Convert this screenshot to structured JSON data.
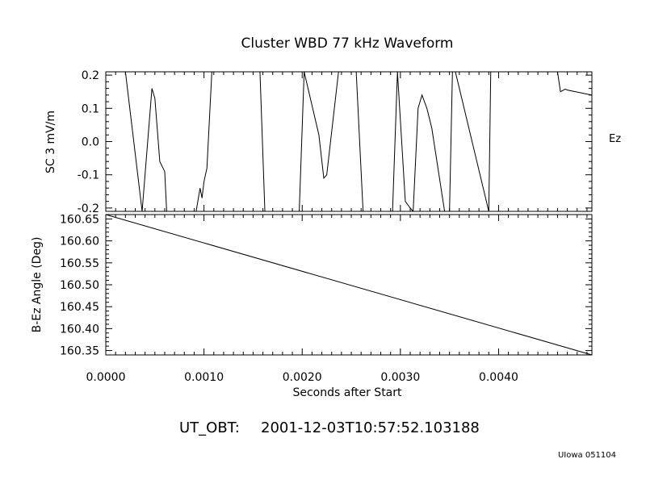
{
  "title": "Cluster WBD 77 kHz Waveform",
  "footer": {
    "time_label": "UT_OBT:",
    "time_value": "2001-12-03T10:57:52.103188",
    "credit": "UIowa 051104"
  },
  "chart_data": [
    {
      "type": "line",
      "ylabel": "SC 3 mV/m",
      "channel_label": "Ez",
      "xlim": [
        0.0,
        0.00495
      ],
      "ylim": [
        -0.21,
        0.21
      ],
      "yticks": [
        -0.2,
        -0.1,
        0.0,
        0.1,
        0.2
      ],
      "ytick_labels": [
        "-0.2",
        "-0.1",
        "0.0",
        "0.1",
        "0.2"
      ],
      "series": [
        {
          "x": [
            0.0002,
            0.00037,
            0.00047,
            0.0005,
            0.00055,
            0.0006,
            0.00062,
            0.00092,
            0.00096,
            0.00098,
            0.001,
            0.00103,
            0.00108,
            0.00157,
            0.00162,
            0.00197,
            0.00202,
            0.00217,
            0.00222,
            0.00225,
            0.00237,
            0.00255,
            0.00262,
            0.00292,
            0.00297,
            0.00305,
            0.0031,
            0.00313,
            0.00318,
            0.00322,
            0.00327,
            0.00332,
            0.00345,
            0.0035,
            0.00353,
            0.00356,
            0.0039,
            0.00392,
            0.0046,
            0.00463,
            0.00468,
            0.0047,
            0.00495
          ],
          "y": [
            0.21,
            -0.21,
            0.16,
            0.13,
            -0.06,
            -0.09,
            -0.21,
            -0.21,
            -0.14,
            -0.17,
            -0.12,
            -0.08,
            0.21,
            0.21,
            -0.21,
            -0.21,
            0.21,
            0.02,
            -0.11,
            -0.1,
            0.21,
            0.21,
            -0.21,
            -0.21,
            0.21,
            -0.18,
            -0.2,
            -0.21,
            0.1,
            0.14,
            0.1,
            0.04,
            -0.21,
            -0.21,
            0.21,
            0.21,
            -0.21,
            0.21,
            0.21,
            0.15,
            0.158,
            0.155,
            0.14
          ]
        }
      ]
    },
    {
      "type": "line",
      "ylabel": "B-Ez Angle (Deg)",
      "xlabel": "Seconds after Start",
      "xlim": [
        0.0,
        0.00495
      ],
      "ylim": [
        160.34,
        160.66
      ],
      "yticks": [
        160.35,
        160.4,
        160.45,
        160.5,
        160.55,
        160.6,
        160.65
      ],
      "ytick_labels": [
        "160.35",
        "160.40",
        "160.45",
        "160.50",
        "160.55",
        "160.60",
        "160.65"
      ],
      "xticks": [
        0.0,
        0.001,
        0.002,
        0.003,
        0.004
      ],
      "xtick_labels": [
        "0.0000",
        "0.0010",
        "0.0020",
        "0.0030",
        "0.0040"
      ],
      "series": [
        {
          "x": [
            0.0,
            0.00495
          ],
          "y": [
            160.66,
            160.34
          ]
        }
      ]
    }
  ]
}
